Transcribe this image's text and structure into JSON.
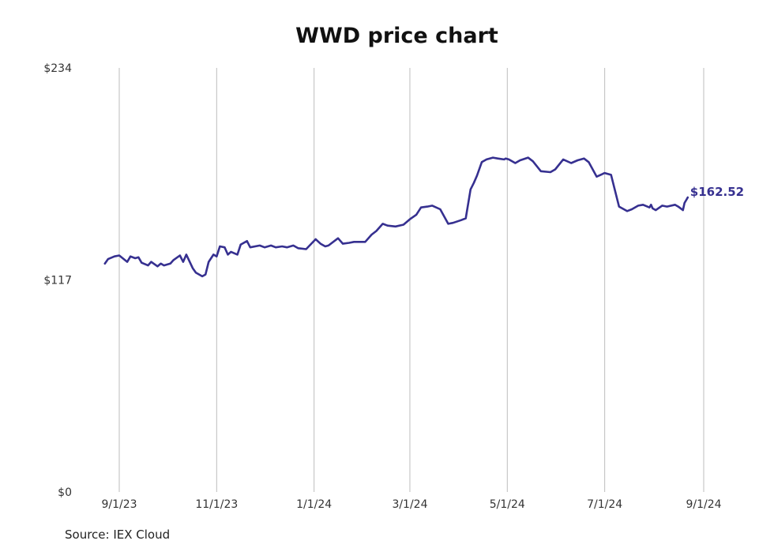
{
  "chart_data": {
    "type": "line",
    "title": "WWD price chart",
    "source": "Source: IEX Cloud",
    "xlabel": "",
    "ylabel": "",
    "ylim": [
      0,
      234
    ],
    "y_ticks": [
      {
        "value": 0,
        "label": "$0"
      },
      {
        "value": 117,
        "label": "$117"
      },
      {
        "value": 234,
        "label": "$234"
      }
    ],
    "xlim": [
      "2023-08-18",
      "2024-09-01"
    ],
    "x_ticks": [
      {
        "date": "2023-09-01",
        "label": "9/1/23"
      },
      {
        "date": "2023-11-01",
        "label": "11/1/23"
      },
      {
        "date": "2024-01-01",
        "label": "1/1/24"
      },
      {
        "date": "2024-03-01",
        "label": "3/1/24"
      },
      {
        "date": "2024-05-01",
        "label": "5/1/24"
      },
      {
        "date": "2024-07-01",
        "label": "7/1/24"
      },
      {
        "date": "2024-09-01",
        "label": "9/1/24"
      }
    ],
    "grid": "vertical",
    "line_color": "#363090",
    "end_label": "$162.52",
    "series": [
      {
        "x": [
          "2023-08-23",
          "2023-08-25",
          "2023-08-29",
          "2023-09-01",
          "2023-09-06",
          "2023-09-08",
          "2023-09-11",
          "2023-09-13",
          "2023-09-15",
          "2023-09-19",
          "2023-09-21",
          "2023-09-25",
          "2023-09-27",
          "2023-09-29",
          "2023-10-03",
          "2023-10-05",
          "2023-10-09",
          "2023-10-11",
          "2023-10-13",
          "2023-10-17",
          "2023-10-19",
          "2023-10-23",
          "2023-10-25",
          "2023-10-27",
          "2023-10-30",
          "2023-11-01",
          "2023-11-03",
          "2023-11-06",
          "2023-11-08",
          "2023-11-10",
          "2023-11-14",
          "2023-11-16",
          "2023-11-20",
          "2023-11-22",
          "2023-11-28",
          "2023-12-01",
          "2023-12-05",
          "2023-12-08",
          "2023-12-12",
          "2023-12-15",
          "2023-12-19",
          "2023-12-22",
          "2023-12-27",
          "2024-01-02",
          "2024-01-05",
          "2024-01-08",
          "2024-01-10",
          "2024-01-16",
          "2024-01-19",
          "2024-01-23",
          "2024-01-26",
          "2024-01-30",
          "2024-02-02",
          "2024-02-06",
          "2024-02-09",
          "2024-02-13",
          "2024-02-16",
          "2024-02-21",
          "2024-02-26",
          "2024-03-01",
          "2024-03-05",
          "2024-03-08",
          "2024-03-12",
          "2024-03-15",
          "2024-03-20",
          "2024-03-25",
          "2024-03-28",
          "2024-04-02",
          "2024-04-05",
          "2024-04-08",
          "2024-04-10",
          "2024-04-12",
          "2024-04-15",
          "2024-04-18",
          "2024-04-22",
          "2024-04-25",
          "2024-04-29",
          "2024-04-30",
          "2024-05-02",
          "2024-05-06",
          "2024-05-09",
          "2024-05-14",
          "2024-05-17",
          "2024-05-22",
          "2024-05-28",
          "2024-05-31",
          "2024-06-05",
          "2024-06-10",
          "2024-06-14",
          "2024-06-18",
          "2024-06-21",
          "2024-06-26",
          "2024-07-01",
          "2024-07-05",
          "2024-07-10",
          "2024-07-15",
          "2024-07-18",
          "2024-07-22",
          "2024-07-25",
          "2024-07-29",
          "2024-07-30",
          "2024-07-31",
          "2024-08-02",
          "2024-08-06",
          "2024-08-09",
          "2024-08-14",
          "2024-08-16",
          "2024-08-19",
          "2024-08-20",
          "2024-08-21",
          "2024-08-22"
        ],
        "y": [
          126.0,
          128.5,
          130.0,
          130.5,
          127.0,
          130.0,
          129.0,
          129.5,
          126.5,
          125.0,
          127.0,
          124.5,
          126.0,
          125.0,
          126.0,
          128.0,
          130.5,
          127.0,
          131.0,
          123.5,
          121.0,
          119.0,
          120.0,
          127.0,
          131.0,
          130.0,
          135.5,
          135.0,
          131.0,
          132.5,
          131.0,
          136.5,
          138.5,
          135.0,
          136.0,
          135.0,
          136.0,
          135.0,
          135.5,
          135.0,
          136.0,
          134.5,
          134.0,
          139.5,
          137.0,
          135.5,
          136.0,
          140.0,
          137.0,
          137.5,
          138.0,
          138.0,
          138.0,
          142.0,
          144.0,
          148.0,
          147.0,
          146.5,
          147.5,
          150.5,
          153.0,
          157.0,
          157.5,
          158.0,
          156.0,
          148.0,
          148.5,
          150.0,
          151.0,
          167.0,
          170.5,
          174.5,
          182.0,
          183.5,
          184.5,
          184.0,
          183.5,
          184.0,
          183.5,
          181.5,
          183.0,
          184.5,
          182.5,
          177.0,
          176.5,
          178.0,
          183.5,
          181.5,
          183.0,
          184.0,
          182.0,
          174.0,
          176.0,
          175.0,
          157.5,
          155.0,
          156.0,
          158.0,
          158.5,
          157.0,
          158.5,
          156.5,
          155.5,
          158.0,
          157.5,
          158.5,
          157.5,
          155.5,
          159.5,
          161.0,
          162.52
        ]
      }
    ]
  }
}
